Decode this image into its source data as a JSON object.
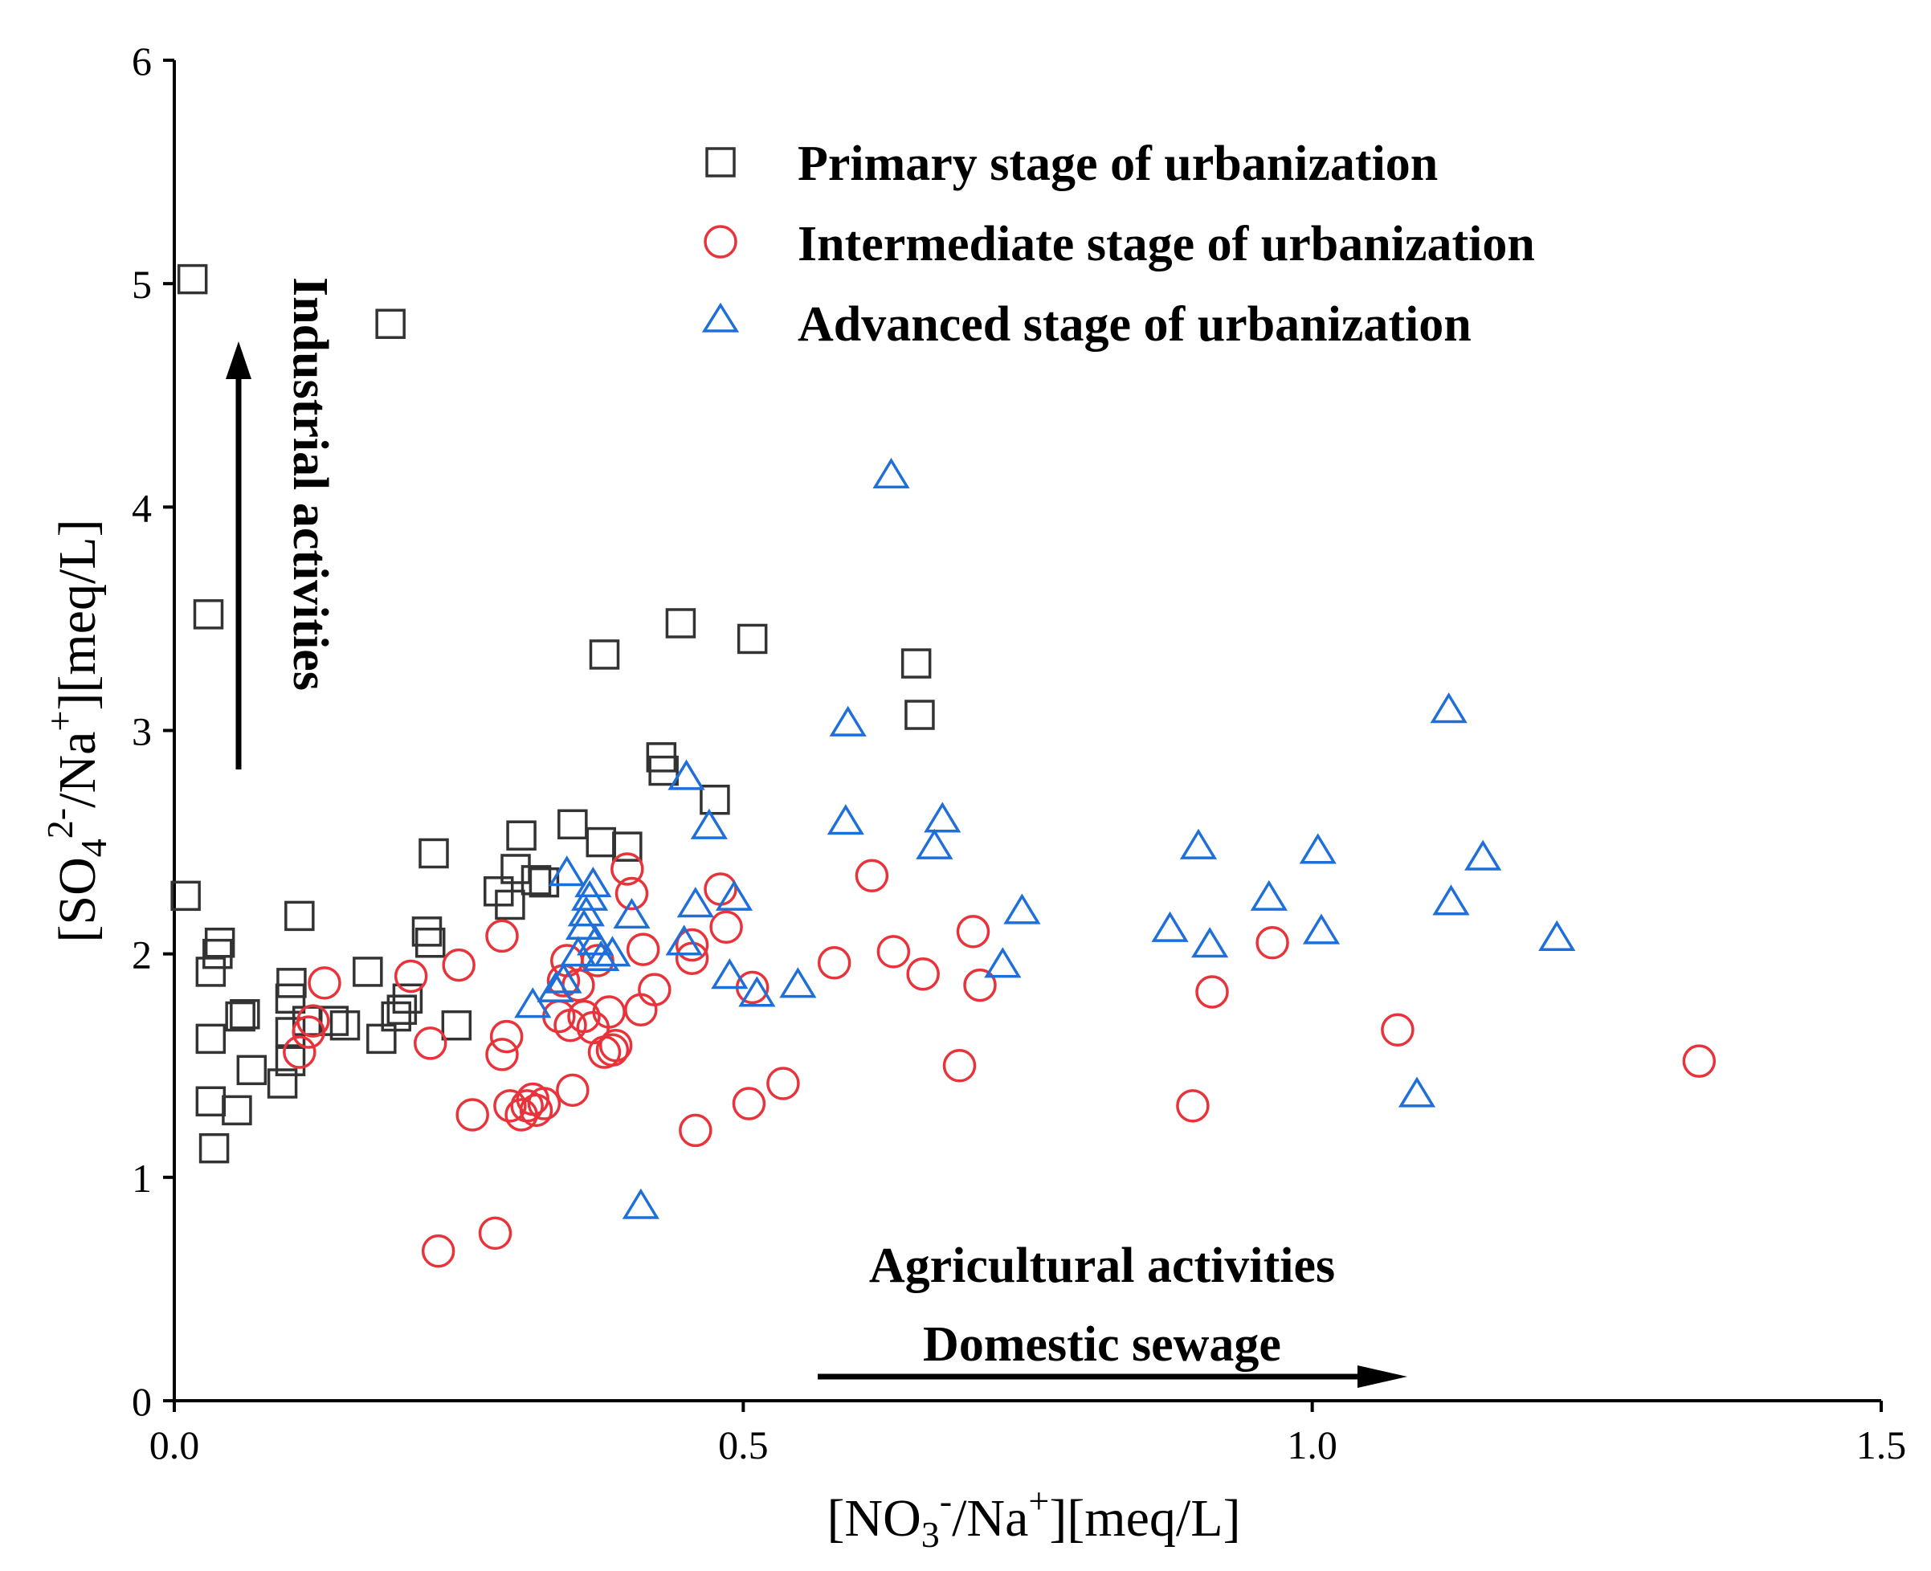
{
  "chart_data": {
    "type": "scatter",
    "xlabel": {
      "main": "[NO",
      "sub1": "3",
      "sup1": "-",
      "mid": "/Na",
      "sup2": "+",
      "tail": "][meq/L]"
    },
    "ylabel": {
      "main": "[SO",
      "sub1": "4",
      "sup1": "2-",
      "mid": "/Na",
      "sup2": "+",
      "tail": "][meq/L]"
    },
    "xlim": [
      0,
      1.5
    ],
    "ylim": [
      0,
      6
    ],
    "x_ticks": [
      0.0,
      0.5,
      1.0,
      1.5
    ],
    "x_tick_labels": [
      "0.0",
      "0.5",
      "1.0",
      "1.5"
    ],
    "y_ticks": [
      0,
      1,
      2,
      3,
      4,
      5,
      6
    ],
    "y_tick_labels": [
      "0",
      "1",
      "2",
      "3",
      "4",
      "5",
      "6"
    ],
    "grid": false,
    "legend_position": "top-right",
    "annotations": {
      "industrial": "Industrial activities",
      "agricultural": "Agricultural activities",
      "domestic": "Domestic sewage"
    },
    "series": [
      {
        "name": "Primary stage of urbanization",
        "marker": "square",
        "color": "#333333",
        "points": [
          [
            0.016,
            5.02
          ],
          [
            0.03,
            3.52
          ],
          [
            0.01,
            2.26
          ],
          [
            0.04,
            2.05
          ],
          [
            0.038,
            2.0
          ],
          [
            0.032,
            1.92
          ],
          [
            0.032,
            1.62
          ],
          [
            0.032,
            1.34
          ],
          [
            0.035,
            1.13
          ],
          [
            0.058,
            1.72
          ],
          [
            0.062,
            1.73
          ],
          [
            0.055,
            1.3
          ],
          [
            0.068,
            1.48
          ],
          [
            0.095,
            1.42
          ],
          [
            0.102,
            1.52
          ],
          [
            0.102,
            1.65
          ],
          [
            0.102,
            1.8
          ],
          [
            0.103,
            1.87
          ],
          [
            0.11,
            2.17
          ],
          [
            0.117,
            1.7
          ],
          [
            0.14,
            1.7
          ],
          [
            0.15,
            1.68
          ],
          [
            0.17,
            1.92
          ],
          [
            0.182,
            1.62
          ],
          [
            0.19,
            4.82
          ],
          [
            0.195,
            1.72
          ],
          [
            0.2,
            1.75
          ],
          [
            0.205,
            1.8
          ],
          [
            0.222,
            2.1
          ],
          [
            0.225,
            2.05
          ],
          [
            0.228,
            2.45
          ],
          [
            0.248,
            1.68
          ],
          [
            0.285,
            2.28
          ],
          [
            0.295,
            2.22
          ],
          [
            0.3,
            2.38
          ],
          [
            0.305,
            2.53
          ],
          [
            0.318,
            2.33
          ],
          [
            0.325,
            2.32
          ],
          [
            0.35,
            2.58
          ],
          [
            0.375,
            2.5
          ],
          [
            0.378,
            3.34
          ],
          [
            0.398,
            2.48
          ],
          [
            0.428,
            2.88
          ],
          [
            0.43,
            2.82
          ],
          [
            0.445,
            3.48
          ],
          [
            0.475,
            2.69
          ],
          [
            0.508,
            3.41
          ],
          [
            0.652,
            3.3
          ],
          [
            0.655,
            3.07
          ]
        ]
      },
      {
        "name": "Intermediate stage of urbanization",
        "marker": "circle",
        "color": "#e8333b",
        "points": [
          [
            0.11,
            1.56
          ],
          [
            0.118,
            1.65
          ],
          [
            0.122,
            1.7
          ],
          [
            0.132,
            1.87
          ],
          [
            0.208,
            1.9
          ],
          [
            0.225,
            1.6
          ],
          [
            0.232,
            0.67
          ],
          [
            0.25,
            1.95
          ],
          [
            0.262,
            1.28
          ],
          [
            0.282,
            0.75
          ],
          [
            0.288,
            2.08
          ],
          [
            0.288,
            1.55
          ],
          [
            0.292,
            1.63
          ],
          [
            0.295,
            1.32
          ],
          [
            0.305,
            1.28
          ],
          [
            0.31,
            1.32
          ],
          [
            0.315,
            1.35
          ],
          [
            0.318,
            1.3
          ],
          [
            0.325,
            1.33
          ],
          [
            0.338,
            1.72
          ],
          [
            0.342,
            1.88
          ],
          [
            0.345,
            1.97
          ],
          [
            0.348,
            1.68
          ],
          [
            0.35,
            1.39
          ],
          [
            0.355,
            1.86
          ],
          [
            0.36,
            1.72
          ],
          [
            0.368,
            1.67
          ],
          [
            0.372,
            1.97
          ],
          [
            0.378,
            1.56
          ],
          [
            0.382,
            1.74
          ],
          [
            0.385,
            1.57
          ],
          [
            0.388,
            1.59
          ],
          [
            0.398,
            2.38
          ],
          [
            0.402,
            2.27
          ],
          [
            0.41,
            1.75
          ],
          [
            0.412,
            2.02
          ],
          [
            0.422,
            1.84
          ],
          [
            0.455,
            2.04
          ],
          [
            0.455,
            1.98
          ],
          [
            0.458,
            1.21
          ],
          [
            0.48,
            2.29
          ],
          [
            0.485,
            2.12
          ],
          [
            0.505,
            1.33
          ],
          [
            0.508,
            1.85
          ],
          [
            0.535,
            1.42
          ],
          [
            0.58,
            1.96
          ],
          [
            0.613,
            2.35
          ],
          [
            0.632,
            2.01
          ],
          [
            0.658,
            1.91
          ],
          [
            0.69,
            1.5
          ],
          [
            0.702,
            2.1
          ],
          [
            0.708,
            1.86
          ],
          [
            0.895,
            1.32
          ],
          [
            0.912,
            1.83
          ],
          [
            0.965,
            2.05
          ],
          [
            1.075,
            1.66
          ],
          [
            1.34,
            1.52
          ]
        ]
      },
      {
        "name": "Advanced stage of urbanization",
        "marker": "triangle",
        "color": "#1f6fd8",
        "points": [
          [
            0.315,
            1.77
          ],
          [
            0.335,
            1.84
          ],
          [
            0.342,
            1.88
          ],
          [
            0.345,
            2.36
          ],
          [
            0.355,
            2.0
          ],
          [
            0.36,
            2.12
          ],
          [
            0.362,
            2.18
          ],
          [
            0.365,
            2.25
          ],
          [
            0.368,
            2.31
          ],
          [
            0.37,
            2.05
          ],
          [
            0.375,
            1.98
          ],
          [
            0.385,
            2.0
          ],
          [
            0.402,
            2.17
          ],
          [
            0.41,
            0.87
          ],
          [
            0.448,
            2.05
          ],
          [
            0.45,
            2.79
          ],
          [
            0.458,
            2.22
          ],
          [
            0.47,
            2.57
          ],
          [
            0.488,
            1.9
          ],
          [
            0.492,
            2.25
          ],
          [
            0.512,
            1.82
          ],
          [
            0.548,
            1.86
          ],
          [
            0.59,
            2.59
          ],
          [
            0.592,
            3.03
          ],
          [
            0.63,
            4.14
          ],
          [
            0.668,
            2.48
          ],
          [
            0.675,
            2.6
          ],
          [
            0.728,
            1.95
          ],
          [
            0.745,
            2.19
          ],
          [
            0.875,
            2.11
          ],
          [
            0.9,
            2.48
          ],
          [
            0.91,
            2.04
          ],
          [
            0.962,
            2.25
          ],
          [
            1.005,
            2.46
          ],
          [
            1.008,
            2.1
          ],
          [
            1.092,
            1.37
          ],
          [
            1.12,
            3.09
          ],
          [
            1.122,
            2.23
          ],
          [
            1.15,
            2.43
          ],
          [
            1.215,
            2.07
          ]
        ]
      }
    ]
  }
}
